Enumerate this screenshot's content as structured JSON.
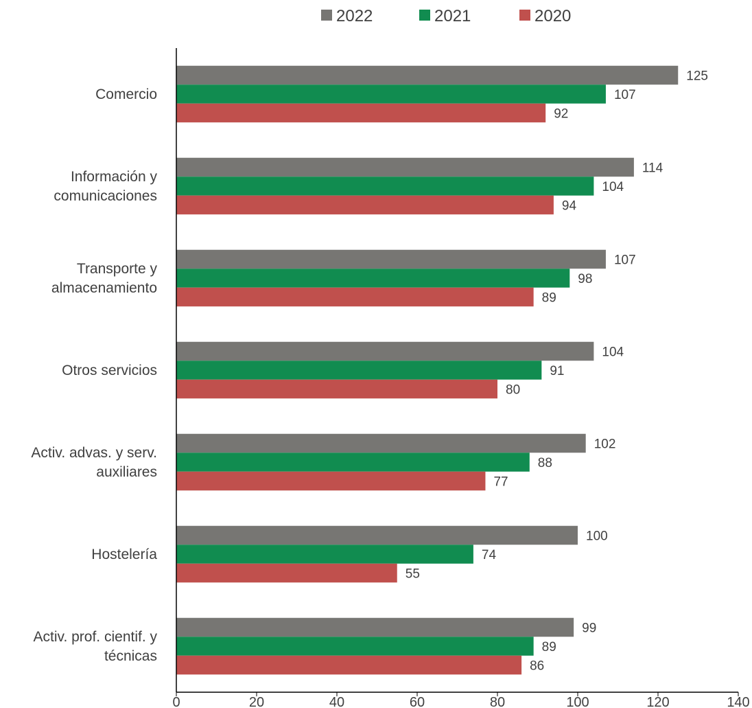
{
  "chart_data": {
    "type": "bar",
    "orientation": "horizontal",
    "categories": [
      [
        "Comercio"
      ],
      [
        "Información y",
        "comunicaciones"
      ],
      [
        "Transporte y",
        "almacenamiento"
      ],
      [
        "Otros servicios"
      ],
      [
        "Activ. advas. y serv.",
        "auxiliares"
      ],
      [
        "Hostelería"
      ],
      [
        "Activ. prof. cientif. y",
        "técnicas"
      ]
    ],
    "series": [
      {
        "name": "2022",
        "color": "#777673",
        "values": [
          125,
          114,
          107,
          104,
          102,
          100,
          99
        ]
      },
      {
        "name": "2021",
        "color": "#118c50",
        "values": [
          107,
          104,
          98,
          91,
          88,
          74,
          89
        ]
      },
      {
        "name": "2020",
        "color": "#c0504d",
        "values": [
          92,
          94,
          89,
          80,
          77,
          55,
          86
        ]
      }
    ],
    "xlim": [
      0,
      140
    ],
    "xticks": [
      0,
      20,
      40,
      60,
      80,
      100,
      120,
      140
    ],
    "legend_position": "top",
    "grid": false
  }
}
